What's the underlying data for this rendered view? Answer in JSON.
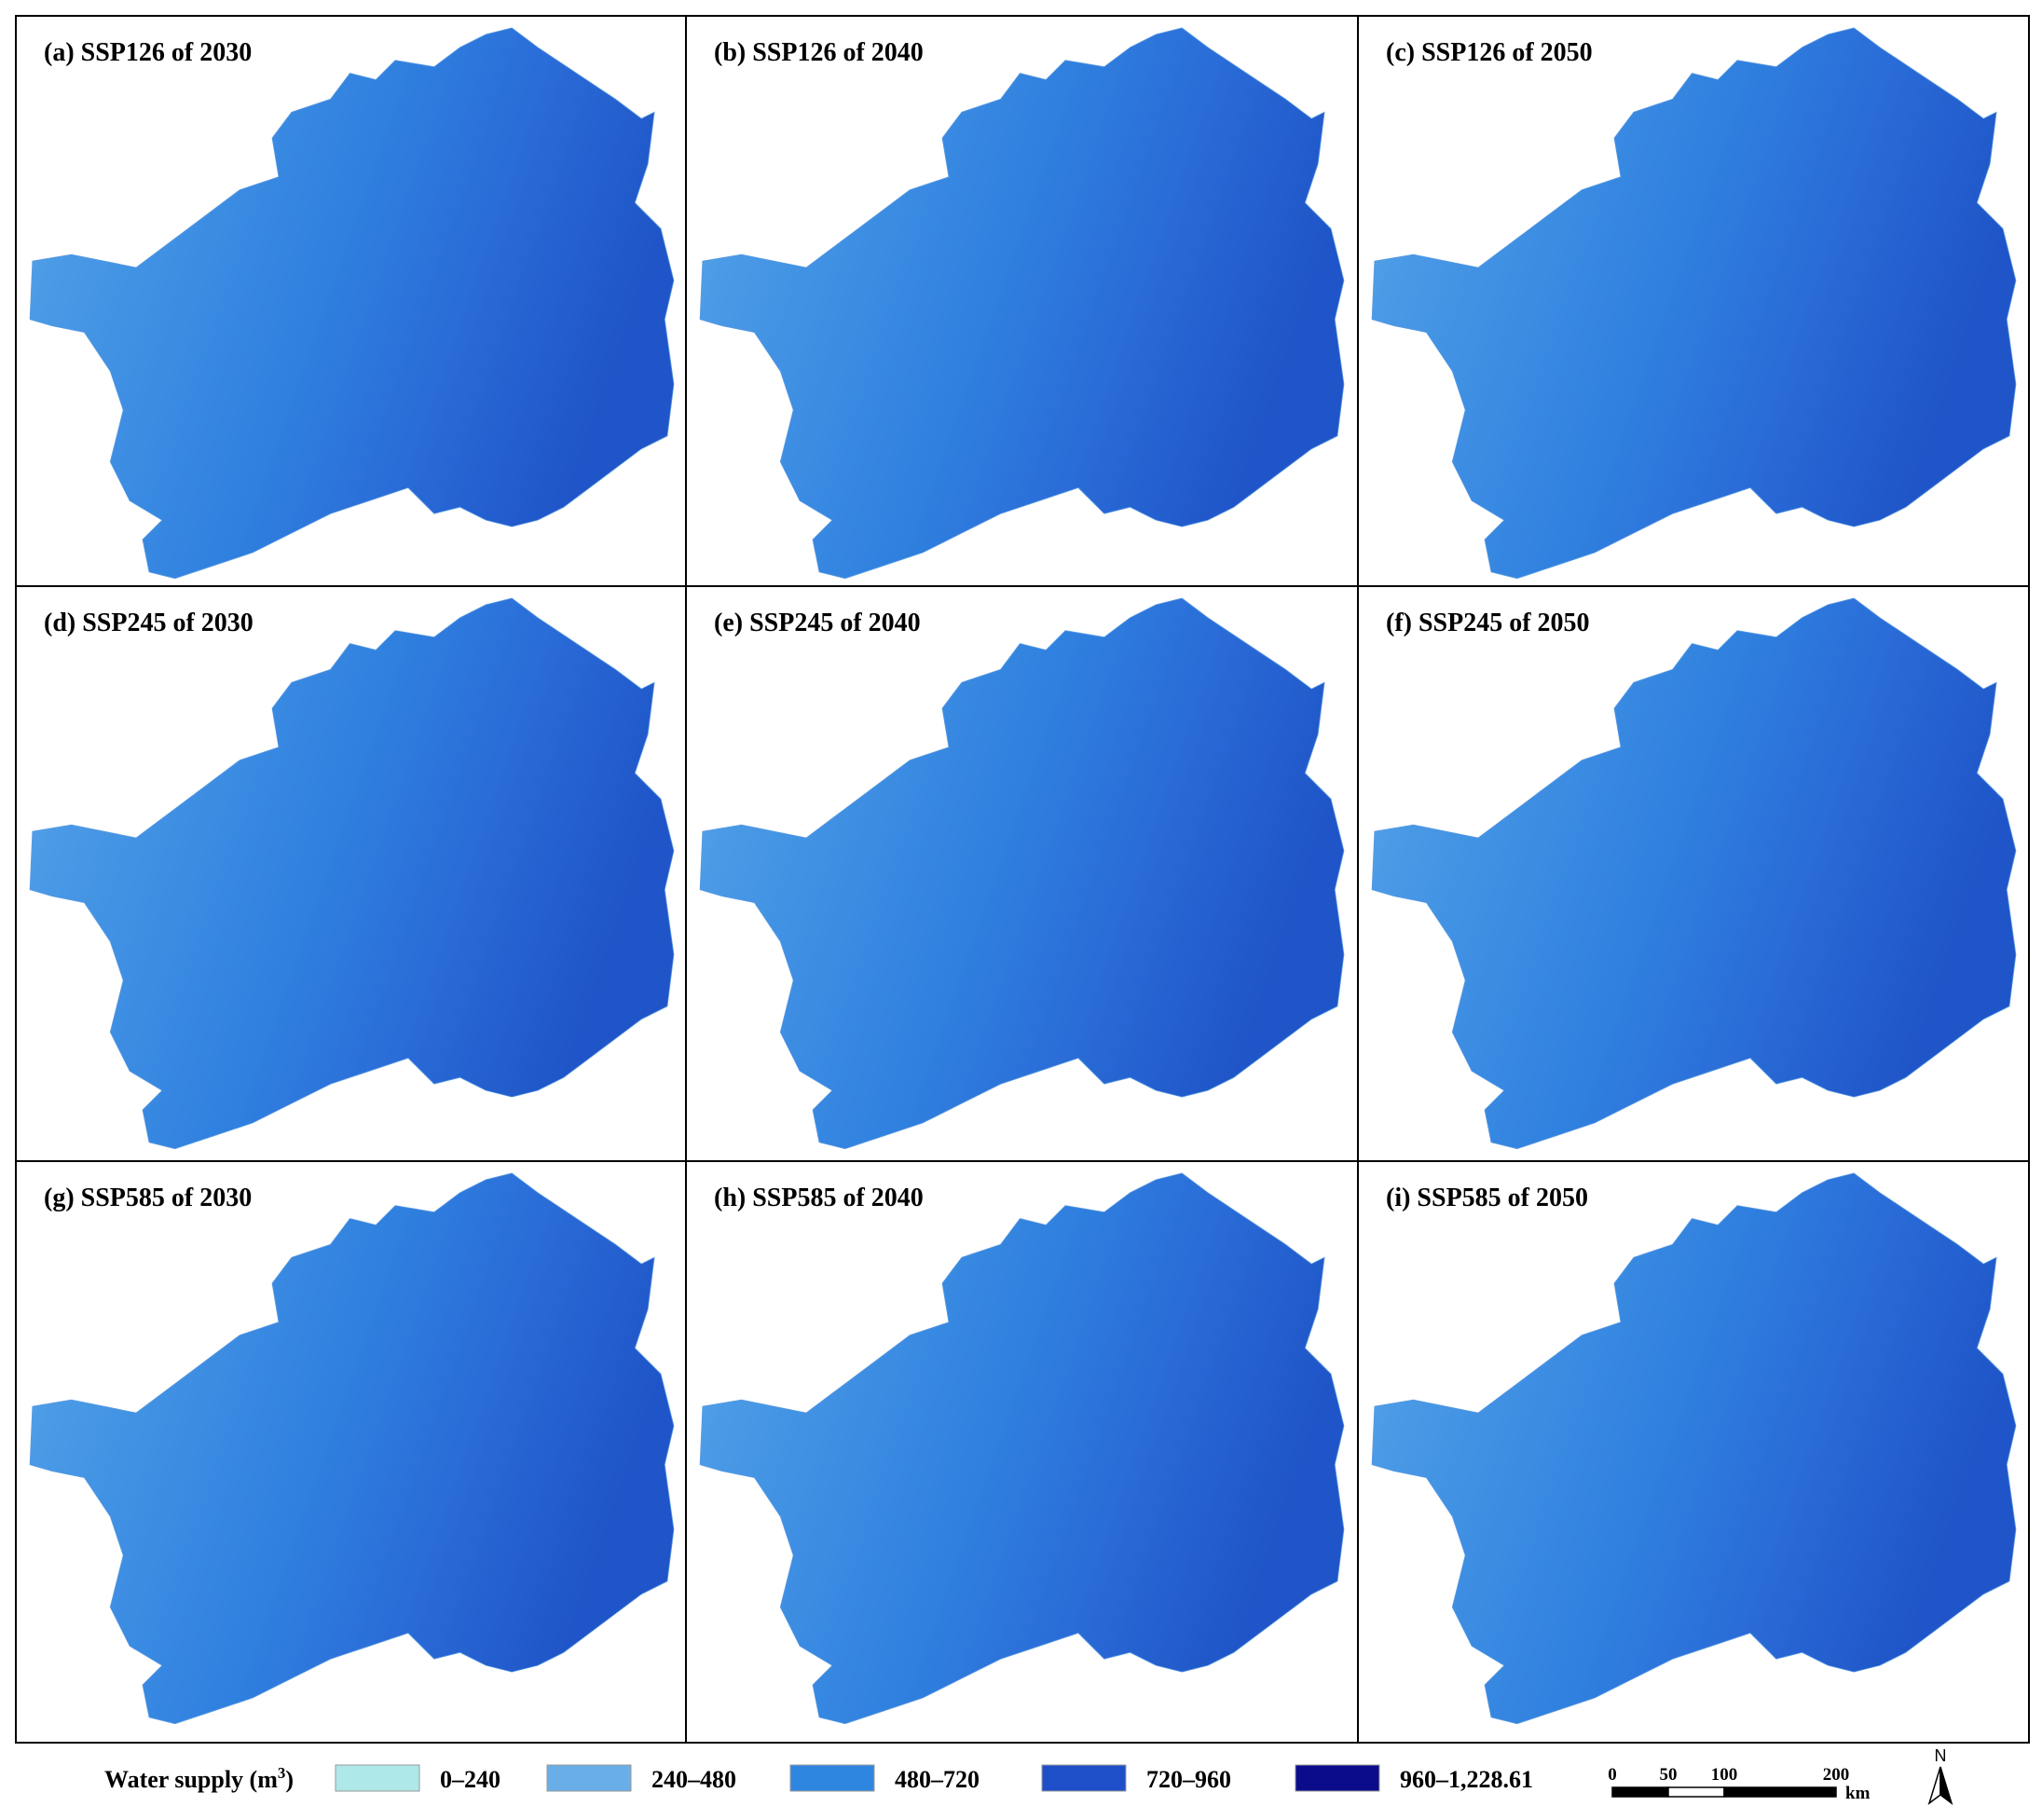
{
  "panels": [
    {
      "label": "(a) SSP126 of 2030"
    },
    {
      "label": "(b) SSP126 of 2040"
    },
    {
      "label": "(c) SSP126 of 2050"
    },
    {
      "label": "(d) SSP245 of 2030"
    },
    {
      "label": "(e) SSP245 of 2040"
    },
    {
      "label": "(f) SSP245 of 2050"
    },
    {
      "label": "(g) SSP585 of 2030"
    },
    {
      "label": "(h) SSP585 of 2040"
    },
    {
      "label": "(i) SSP585 of 2050"
    }
  ],
  "legend": {
    "title": {
      "text": "Water supply (m",
      "sup": "3",
      "close": ")"
    },
    "items": [
      {
        "label": "0–240",
        "color": "#aee8e8"
      },
      {
        "label": "240–480",
        "color": "#6aaee8"
      },
      {
        "label": "480–720",
        "color": "#2f86e0"
      },
      {
        "label": "720–960",
        "color": "#1f4fc8"
      },
      {
        "label": "960–1,228.61",
        "color": "#0b0c8c"
      }
    ]
  },
  "scale_bar": {
    "ticks": [
      0,
      50,
      100,
      200
    ],
    "unit": "km"
  },
  "north": "N"
}
